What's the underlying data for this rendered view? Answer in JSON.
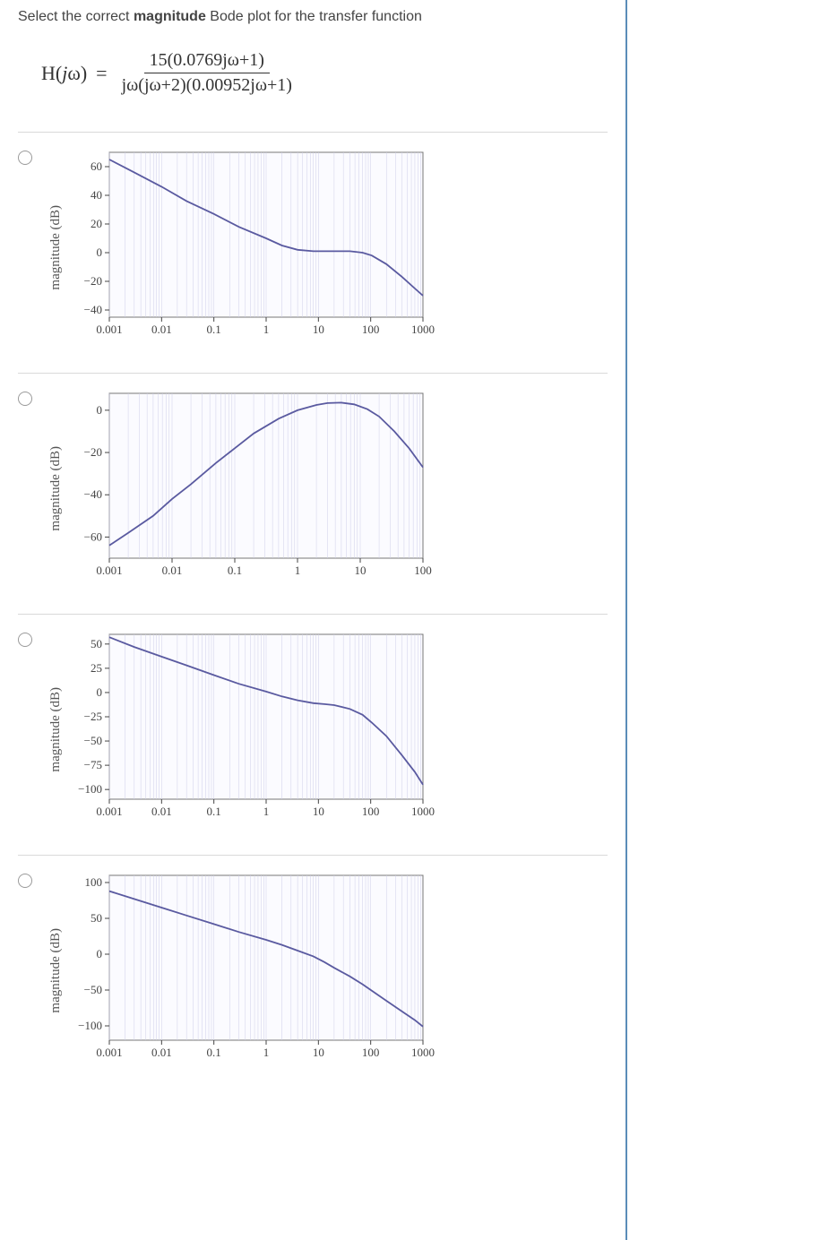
{
  "question": {
    "pre": "Select the correct ",
    "bold": "magnitude",
    "post": " Bode plot for the transfer function"
  },
  "equation": {
    "lhs": "H(jω)  =",
    "numerator": "15(0.0769jω+1)",
    "denominator": "jω(jω+2)(0.00952jω+1)"
  },
  "common": {
    "ylabel": "magnitude  (dB)",
    "line_color": "#5a5aa0",
    "frame_fill": "#fbfbff",
    "grid_color": "#cfcfe8",
    "xscale": "log"
  },
  "options": [
    {
      "id": "a",
      "x_ticks": [
        0.001,
        0.01,
        0.1,
        1,
        10,
        100,
        1000
      ],
      "x_labels": [
        "0.001",
        "0.01",
        "0.1",
        "1",
        "10",
        "100",
        "1000"
      ],
      "ylim": [
        -45,
        70
      ],
      "y_ticks": [
        -40,
        -20,
        0,
        20,
        40,
        60
      ],
      "points": [
        [
          0.001,
          65
        ],
        [
          0.003,
          56
        ],
        [
          0.01,
          46
        ],
        [
          0.03,
          36
        ],
        [
          0.1,
          27
        ],
        [
          0.3,
          18
        ],
        [
          1,
          10
        ],
        [
          2,
          5
        ],
        [
          4,
          2
        ],
        [
          8,
          1
        ],
        [
          13,
          1
        ],
        [
          20,
          1
        ],
        [
          40,
          1
        ],
        [
          70,
          0
        ],
        [
          105,
          -2
        ],
        [
          200,
          -8
        ],
        [
          400,
          -17
        ],
        [
          700,
          -25
        ],
        [
          1000,
          -30
        ]
      ]
    },
    {
      "id": "b",
      "x_ticks": [
        0.001,
        0.01,
        0.1,
        1,
        10,
        100
      ],
      "x_labels": [
        "0.001",
        "0.01",
        "0.1",
        "1",
        "10",
        "100"
      ],
      "ylim": [
        -70,
        8
      ],
      "y_ticks": [
        -60,
        -40,
        -20,
        0
      ],
      "points": [
        [
          0.001,
          -64
        ],
        [
          0.002,
          -58
        ],
        [
          0.005,
          -50
        ],
        [
          0.01,
          -42
        ],
        [
          0.02,
          -35
        ],
        [
          0.05,
          -25
        ],
        [
          0.1,
          -18
        ],
        [
          0.2,
          -11
        ],
        [
          0.5,
          -4
        ],
        [
          1,
          0
        ],
        [
          2,
          2.5
        ],
        [
          3,
          3.4
        ],
        [
          5,
          3.6
        ],
        [
          8,
          2.8
        ],
        [
          13,
          0.5
        ],
        [
          20,
          -3
        ],
        [
          35,
          -10
        ],
        [
          60,
          -18
        ],
        [
          100,
          -27
        ]
      ]
    },
    {
      "id": "c",
      "x_ticks": [
        0.001,
        0.01,
        0.1,
        1,
        10,
        100,
        1000
      ],
      "x_labels": [
        "0.001",
        "0.01",
        "0.1",
        "1",
        "10",
        "100",
        "1000"
      ],
      "ylim": [
        -110,
        60
      ],
      "y_ticks": [
        -100,
        -75,
        -50,
        -25,
        0,
        25,
        50
      ],
      "points": [
        [
          0.001,
          57
        ],
        [
          0.003,
          47
        ],
        [
          0.01,
          37
        ],
        [
          0.03,
          28
        ],
        [
          0.1,
          18
        ],
        [
          0.3,
          9
        ],
        [
          1,
          1
        ],
        [
          2,
          -4
        ],
        [
          4,
          -8
        ],
        [
          8,
          -11
        ],
        [
          13,
          -12
        ],
        [
          20,
          -13
        ],
        [
          40,
          -17
        ],
        [
          70,
          -23
        ],
        [
          105,
          -31
        ],
        [
          200,
          -45
        ],
        [
          400,
          -65
        ],
        [
          700,
          -82
        ],
        [
          1000,
          -95
        ]
      ]
    },
    {
      "id": "d",
      "x_ticks": [
        0.001,
        0.01,
        0.1,
        1,
        10,
        100,
        1000
      ],
      "x_labels": [
        "0.001",
        "0.01",
        "0.1",
        "1",
        "10",
        "100",
        "1000"
      ],
      "ylim": [
        -120,
        110
      ],
      "y_ticks": [
        -100,
        -50,
        0,
        50,
        100
      ],
      "points": [
        [
          0.001,
          88
        ],
        [
          0.003,
          77
        ],
        [
          0.01,
          65
        ],
        [
          0.03,
          54
        ],
        [
          0.1,
          42
        ],
        [
          0.3,
          31
        ],
        [
          1,
          20
        ],
        [
          2,
          13
        ],
        [
          4,
          5
        ],
        [
          8,
          -3
        ],
        [
          13,
          -11
        ],
        [
          20,
          -19
        ],
        [
          40,
          -31
        ],
        [
          70,
          -42
        ],
        [
          105,
          -51
        ],
        [
          200,
          -65
        ],
        [
          400,
          -80
        ],
        [
          700,
          -92
        ],
        [
          1000,
          -101
        ]
      ]
    }
  ]
}
